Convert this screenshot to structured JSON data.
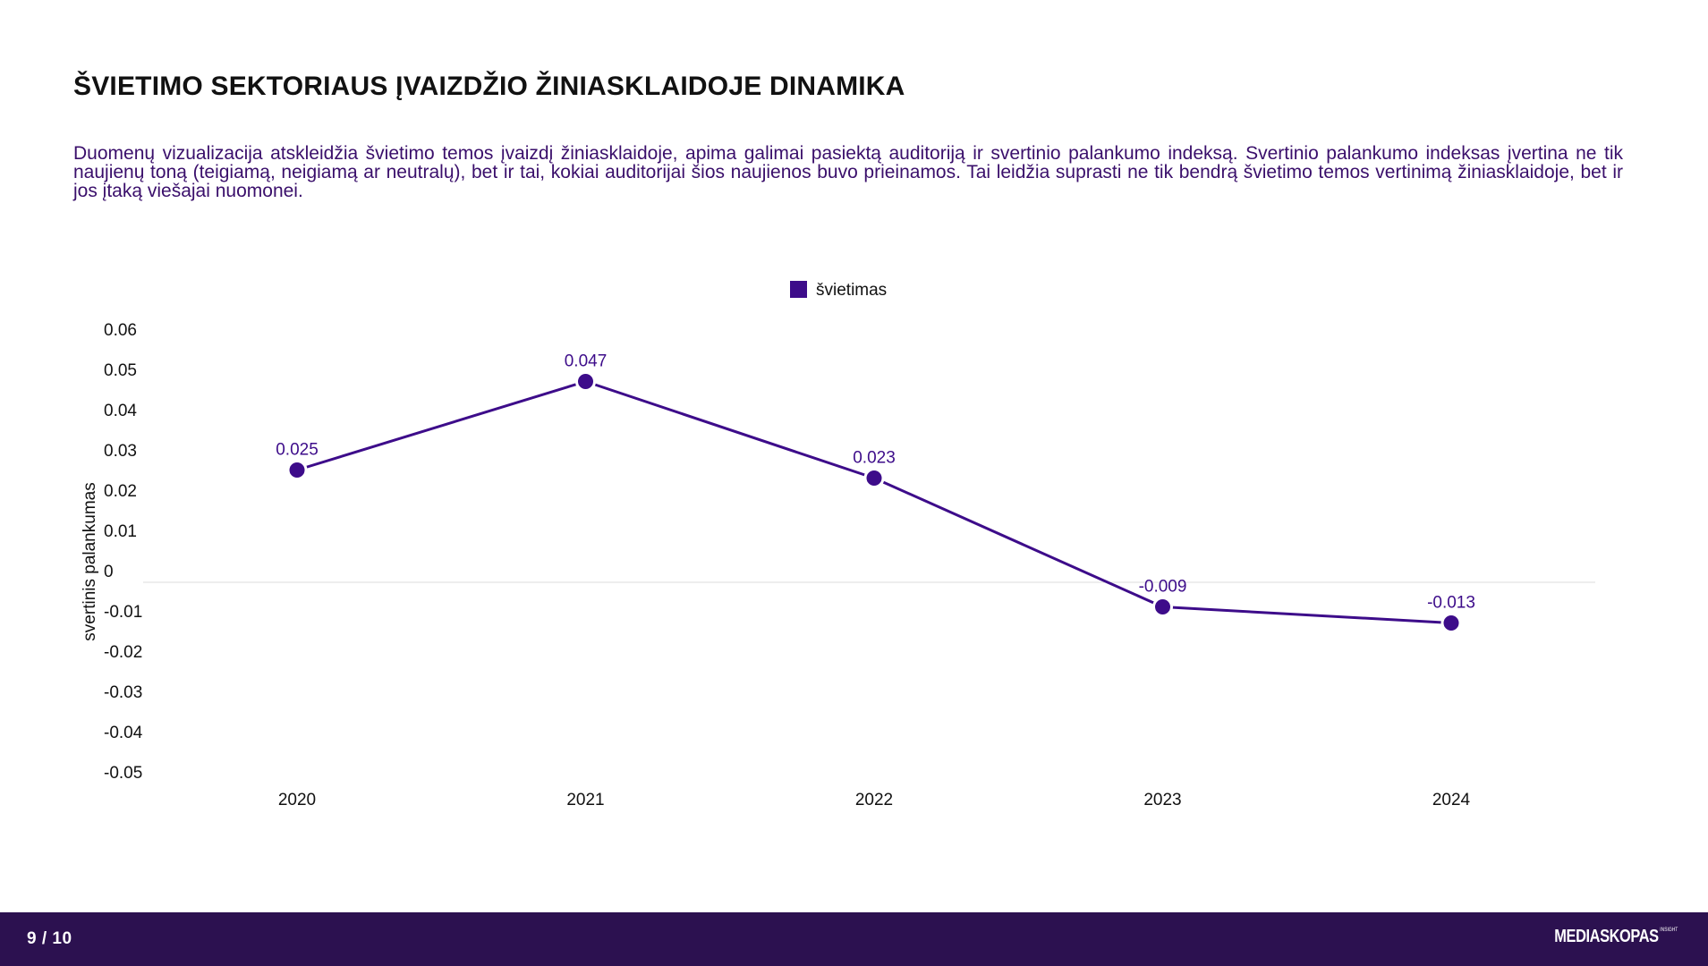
{
  "header": {
    "title": "ŠVIETIMO SEKTORIAUS ĮVAIZDŽIO ŽINIASKLAIDOJE DINAMIKA",
    "description": "Duomenų vizualizacija atskleidžia švietimo temos įvaizdį žiniasklaidoje, apima galimai pasiektą auditoriją ir svertinio palankumo indeksą. Svertinio palankumo indeksas įvertina ne tik naujienų toną (teigiamą, neigiamą ar neutralų), bet ir tai, kokiai auditorijai šios naujienos buvo prieinamos. Tai leidžia suprasti ne tik bendrą švietimo temos vertinimą žiniasklaidoje, bet ir jos įtaką viešajai nuomonei."
  },
  "chart_data": {
    "type": "line",
    "title": "",
    "xlabel": "",
    "ylabel": "svertinis palankumas",
    "categories": [
      "2020",
      "2021",
      "2022",
      "2023",
      "2024"
    ],
    "series": [
      {
        "name": "švietimas",
        "values": [
          0.025,
          0.047,
          0.023,
          -0.009,
          -0.013
        ],
        "labels": [
          "0.025",
          "0.047",
          "0.023",
          "-0.009",
          "-0.013"
        ],
        "color": "#3d0c8a"
      }
    ],
    "ylim": [
      -0.05,
      0.06
    ],
    "yticks": [
      0.06,
      0.05,
      0.04,
      0.03,
      0.02,
      0.01,
      0,
      -0.01,
      -0.02,
      -0.03,
      -0.04,
      -0.05
    ],
    "ytick_labels": [
      "0.06",
      "0.05",
      "0.04",
      "0.03",
      "0.02",
      "0.01",
      "0",
      "-0.01",
      "-0.02",
      "-0.03",
      "-0.04",
      "-0.05"
    ],
    "legend_position": "top-center",
    "grid": false,
    "zero_line": true
  },
  "footer": {
    "page": "9 / 10",
    "brand": "MEDIASKOPAS",
    "brand_sub": "INSIGHT"
  },
  "colors": {
    "series": "#3d0c8a",
    "label": "#3d0c8a",
    "description_text": "#3a0f6b",
    "footer_bg": "#2c1150",
    "zero_line": "#dddddd"
  }
}
